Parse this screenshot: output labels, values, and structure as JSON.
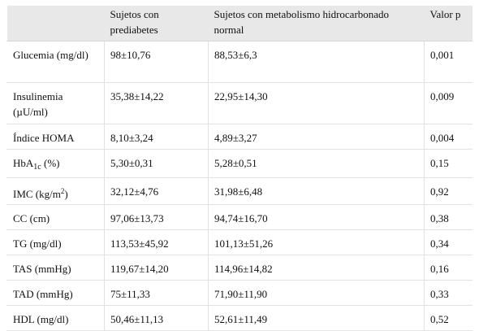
{
  "table": {
    "headers": [
      "",
      "Sujetos con prediabetes",
      "Sujetos con metabolismo hidrocarbonado normal",
      "Valor p"
    ],
    "rows": [
      {
        "label": "Glucemia (mg/dl)",
        "pre": "98±10,76",
        "normal": "88,53±6,3",
        "p": "0,001"
      },
      {
        "label": "Insulinemia (µU/ml)",
        "pre": "35,38±14,22",
        "normal": "22,95±14,30",
        "p": "0,009"
      },
      {
        "label": "Índice HOMA",
        "pre": "8,10±3,24",
        "normal": "4,89±3,27",
        "p": "0,004"
      },
      {
        "label_main": "HbA",
        "label_sub": "1c",
        "label_tail": " (%)",
        "pre": "5,30±0,31",
        "normal": "5,28±0,51",
        "p": "0,15"
      },
      {
        "label_main": "IMC (kg/m",
        "label_sup": "2",
        "label_tail": ")",
        "pre": "32,12±4,76",
        "normal": "31,98±6,48",
        "p": "0,92"
      },
      {
        "label": "CC (cm)",
        "pre": "97,06±13,73",
        "normal": "94,74±16,70",
        "p": "0,38"
      },
      {
        "label": "TG (mg/dl)",
        "pre": "113,53±45,92",
        "normal": "101,13±51,26",
        "p": "0,34"
      },
      {
        "label": "TAS (mmHg)",
        "pre": "119,67±14,20",
        "normal": "114,96±14,82",
        "p": "0,16"
      },
      {
        "label": "TAD (mmHg)",
        "pre": "75±11,33",
        "normal": "71,90±11,90",
        "p": "0,33"
      },
      {
        "label": "HDL (mg/dl)",
        "pre": "50,46±11,13",
        "normal": "52,61±11,49",
        "p": "0,52"
      }
    ]
  }
}
